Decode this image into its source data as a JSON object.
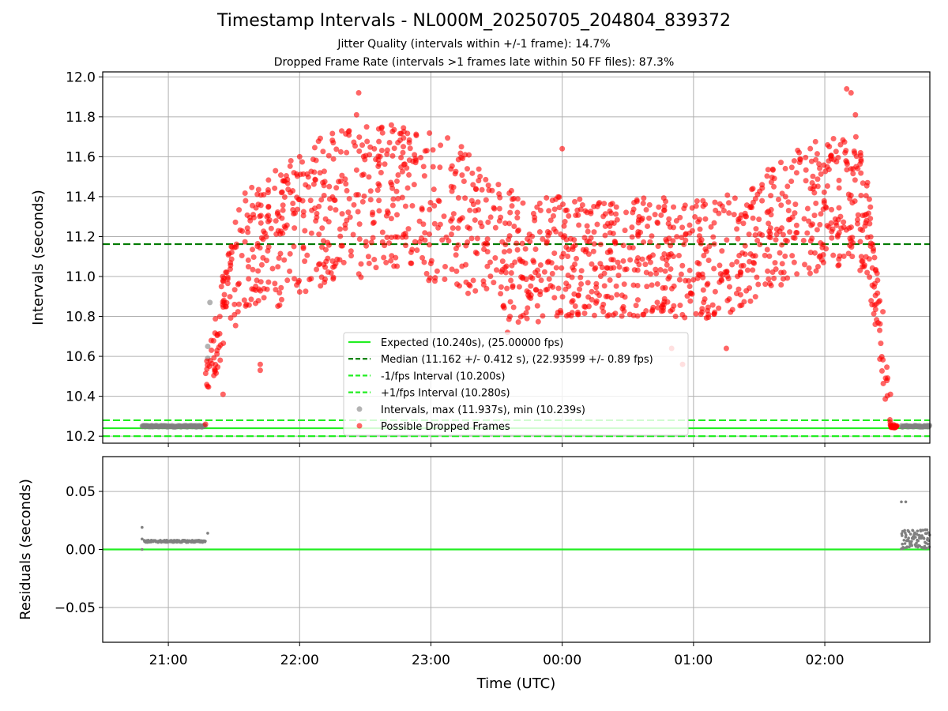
{
  "title": "Timestamp Intervals - NL000M_20250705_204804_839372",
  "subtitle_1": "Jitter Quality (intervals within +/-1 frame): 14.7%",
  "subtitle_2": "Dropped Frame Rate (intervals >1 frames late within 50 FF files): 87.3%",
  "colors": {
    "expected": "#22ee22",
    "median": "#007a00",
    "band": "#22ee22",
    "intervals": "#808080",
    "dropped": "#ff0000"
  },
  "chart_data": [
    {
      "type": "scatter",
      "ylabel": "Intervals (seconds)",
      "ylim": [
        10.165,
        12.025
      ],
      "yticks": [
        10.2,
        10.4,
        10.6,
        10.8,
        11.0,
        11.2,
        11.4,
        11.6,
        11.8,
        12.0
      ],
      "ytick_labels": [
        "10.2",
        "10.4",
        "10.6",
        "10.8",
        "11.0",
        "11.2",
        "11.4",
        "11.6",
        "11.8",
        "12.0"
      ],
      "xlim_hours": [
        20.5,
        26.8
      ],
      "grid": true,
      "legend_position": "lower center",
      "legend": [
        "Expected (10.240s), (25.00000 fps)",
        "Median (11.162 +/- 0.412 s), (22.93599 +/- 0.89 fps)",
        "-1/fps Interval (10.200s)",
        "+1/fps Interval (10.280s)",
        "Intervals, max (11.937s), min (10.239s)",
        "Possible Dropped Frames"
      ],
      "reference_lines": {
        "expected": 10.24,
        "median": 11.162,
        "minus_1_fps": 10.2,
        "plus_1_fps": 10.28
      },
      "series": [
        {
          "name": "Intervals, max (11.937s), min (10.239s)",
          "segments": [
            {
              "x_start": "20:48",
              "x_end": "21:17",
              "y": 10.25
            },
            {
              "x_start": "02:35",
              "x_end": "02:48",
              "y": 10.25
            }
          ],
          "points": [
            {
              "x": "21:19",
              "y": 10.87
            },
            {
              "x": "21:18",
              "y": 10.65
            },
            {
              "x": "21:18",
              "y": 10.59
            }
          ]
        },
        {
          "name": "Possible Dropped Frames",
          "envelope": [
            {
              "x": "21:17",
              "low": 10.42,
              "high": 10.62
            },
            {
              "x": "21:25",
              "low": 10.55,
              "high": 11.05
            },
            {
              "x": "21:35",
              "low": 10.85,
              "high": 11.45
            },
            {
              "x": "21:50",
              "low": 10.85,
              "high": 11.55
            },
            {
              "x": "22:10",
              "low": 10.95,
              "high": 11.7
            },
            {
              "x": "22:30",
              "low": 11.0,
              "high": 11.78
            },
            {
              "x": "22:50",
              "low": 11.0,
              "high": 11.75
            },
            {
              "x": "23:10",
              "low": 10.95,
              "high": 11.72
            },
            {
              "x": "23:25",
              "low": 10.8,
              "high": 11.55
            },
            {
              "x": "23:40",
              "low": 10.75,
              "high": 11.4
            },
            {
              "x": "00:00",
              "low": 10.8,
              "high": 11.4
            },
            {
              "x": "00:20",
              "low": 10.8,
              "high": 11.38
            },
            {
              "x": "00:40",
              "low": 10.8,
              "high": 11.4
            },
            {
              "x": "01:00",
              "low": 10.78,
              "high": 11.38
            },
            {
              "x": "01:20",
              "low": 10.82,
              "high": 11.42
            },
            {
              "x": "01:35",
              "low": 10.92,
              "high": 11.55
            },
            {
              "x": "01:50",
              "low": 11.0,
              "high": 11.65
            },
            {
              "x": "02:05",
              "low": 11.05,
              "high": 11.72
            },
            {
              "x": "02:15",
              "low": 11.05,
              "high": 11.72
            },
            {
              "x": "02:20",
              "low": 10.95,
              "high": 11.45
            },
            {
              "x": "02:24",
              "low": 10.7,
              "high": 11.05
            },
            {
              "x": "02:27",
              "low": 10.4,
              "high": 10.8
            },
            {
              "x": "02:30",
              "low": 10.25,
              "high": 10.35
            }
          ],
          "outliers": [
            {
              "x": "22:27",
              "y": 11.92
            },
            {
              "x": "02:10",
              "y": 11.94
            },
            {
              "x": "02:12",
              "y": 11.92
            },
            {
              "x": "22:26",
              "y": 11.81
            },
            {
              "x": "02:14",
              "y": 11.81
            },
            {
              "x": "22:00",
              "y": 11.6
            },
            {
              "x": "21:42",
              "y": 10.56
            },
            {
              "x": "21:42",
              "y": 10.53
            },
            {
              "x": "00:55",
              "y": 10.56
            },
            {
              "x": "00:50",
              "y": 10.64
            },
            {
              "x": "01:15",
              "y": 10.64
            },
            {
              "x": "21:25",
              "y": 10.41
            },
            {
              "x": "23:35",
              "y": 10.72
            },
            {
              "x": "00:00",
              "y": 11.64
            },
            {
              "x": "02:30",
              "y": 10.41
            }
          ],
          "dense_end": {
            "x_start": "02:30",
            "x_end": "02:33",
            "y": 10.25
          }
        }
      ]
    },
    {
      "type": "scatter",
      "ylabel": "Residuals (seconds)",
      "xlabel": "Time (UTC)",
      "ylim": [
        -0.08,
        0.08
      ],
      "yticks": [
        -0.05,
        0.0,
        0.05
      ],
      "ytick_labels": [
        "−0.05",
        "0.00",
        "0.05"
      ],
      "x_ticks": [
        "21:00",
        "22:00",
        "23:00",
        "00:00",
        "01:00",
        "02:00"
      ],
      "xlim_hours": [
        20.5,
        26.8
      ],
      "grid": true,
      "zero_line": 0.0,
      "series": [
        {
          "name": "residuals",
          "band_1": {
            "x_start": "20:49",
            "x_end": "21:17",
            "y": 0.007
          },
          "band_2": {
            "x_start": "02:35",
            "x_end": "02:48",
            "y_min": 0.0,
            "y_max": 0.017
          },
          "points": [
            {
              "x": "20:48",
              "y": 0.019
            },
            {
              "x": "20:48",
              "y": 0.009
            },
            {
              "x": "20:48",
              "y": 0.0
            },
            {
              "x": "21:18",
              "y": 0.014
            },
            {
              "x": "02:35",
              "y": 0.041
            },
            {
              "x": "02:37",
              "y": 0.041
            }
          ]
        }
      ]
    }
  ]
}
